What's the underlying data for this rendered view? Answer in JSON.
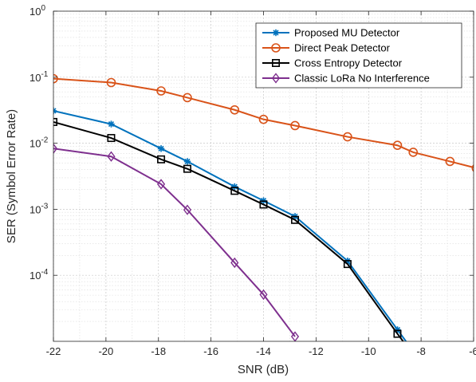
{
  "chart_data": {
    "type": "line",
    "xlabel": "SNR (dB)",
    "ylabel": "SER (Symbol Error Rate)",
    "xlim": [
      -22,
      -6
    ],
    "ylim": [
      1e-05,
      1
    ],
    "yscale": "log",
    "grid": true,
    "minor_grid": true,
    "legend_position": "top-right",
    "x_ticks": [
      -22,
      -20,
      -18,
      -16,
      -14,
      -12,
      -10,
      -8,
      -6
    ],
    "x_tick_labels": [
      "-22",
      "-20",
      "-18",
      "-16",
      "-14",
      "-12",
      "-10",
      "-8",
      "-6"
    ],
    "y_ticks": [
      0.0001,
      0.001,
      0.01,
      0.1,
      1
    ],
    "y_tick_labels": [
      {
        "base": "10",
        "exp": "-4"
      },
      {
        "base": "10",
        "exp": "-3"
      },
      {
        "base": "10",
        "exp": "-2"
      },
      {
        "base": "10",
        "exp": "-1"
      },
      {
        "base": "10",
        "exp": "0"
      }
    ],
    "series": [
      {
        "name": "Proposed MU Detector",
        "color": "#0072BD",
        "marker": "star",
        "x": [
          -22,
          -19.8,
          -17.9,
          -16.9,
          -15.1,
          -14,
          -12.8,
          -10.8,
          -8.9,
          -8.3
        ],
        "y": [
          0.031,
          0.0195,
          0.0083,
          0.0053,
          0.0022,
          0.00135,
          0.00078,
          0.000165,
          1.5e-05,
          7.1e-06
        ]
      },
      {
        "name": "Direct Peak Detector",
        "color": "#D95319",
        "marker": "circle",
        "x": [
          -22,
          -19.8,
          -17.9,
          -16.9,
          -15.1,
          -14,
          -12.8,
          -10.8,
          -8.9,
          -8.3,
          -6.9,
          -5.9
        ],
        "y": [
          0.095,
          0.083,
          0.062,
          0.049,
          0.032,
          0.023,
          0.0185,
          0.0125,
          0.0093,
          0.0073,
          0.0053,
          0.0042
        ]
      },
      {
        "name": "Cross Entropy Detector",
        "color": "#000000",
        "marker": "square",
        "x": [
          -22,
          -19.8,
          -17.9,
          -16.9,
          -15.1,
          -14,
          -12.8,
          -10.8,
          -8.9,
          -8.4
        ],
        "y": [
          0.021,
          0.012,
          0.0057,
          0.0041,
          0.0019,
          0.00118,
          0.00069,
          0.000148,
          1.3e-05,
          7.1e-06
        ]
      },
      {
        "name": "Classic LoRa No Interference",
        "color": "#7E2F8E",
        "marker": "diamond",
        "x": [
          -22,
          -19.8,
          -17.9,
          -16.9,
          -15.1,
          -14,
          -12.8
        ],
        "y": [
          0.0083,
          0.0063,
          0.0024,
          0.00098,
          0.000155,
          5.1e-05,
          1.18e-05
        ]
      }
    ]
  }
}
